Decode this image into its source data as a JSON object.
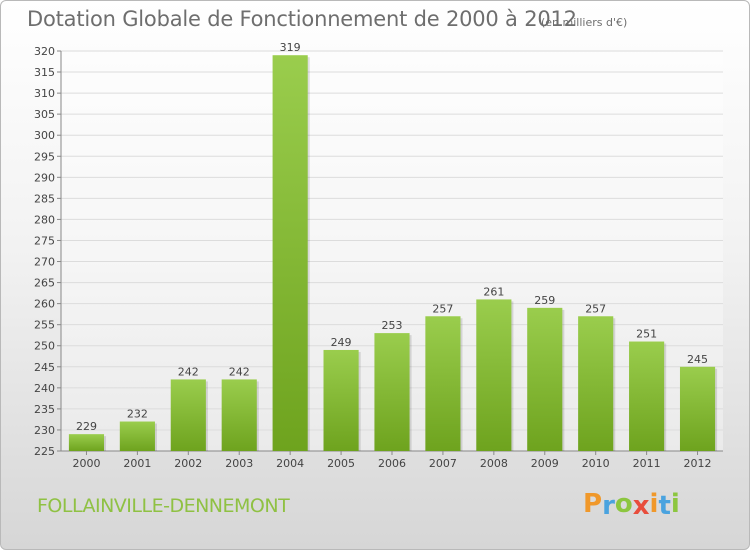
{
  "chart_data": {
    "type": "bar",
    "title": "Dotation Globale de Fonctionnement de 2000 à 2012",
    "unit_note": "(en milliers d'€)",
    "categories": [
      "2000",
      "2001",
      "2002",
      "2003",
      "2004",
      "2005",
      "2006",
      "2007",
      "2008",
      "2009",
      "2010",
      "2011",
      "2012"
    ],
    "values": [
      229,
      232,
      242,
      242,
      319,
      249,
      253,
      257,
      261,
      259,
      257,
      251,
      245
    ],
    "ylim": [
      225,
      320
    ],
    "ytick_step": 5,
    "grid": "horizontal",
    "bar_color_top": "#9acd4d",
    "bar_color_bottom": "#6ea31e"
  },
  "footer": {
    "commune": "FOLLAINVILLE-DENNEMONT"
  },
  "brand": {
    "name": "Proxiti",
    "letters": [
      "P",
      "r",
      "o",
      "x",
      "i",
      "t",
      "i"
    ],
    "colors": [
      "#f0982a",
      "#4aa3df",
      "#8cc63f",
      "#e84d3c",
      "#f0982a",
      "#4aa3df",
      "#8cc63f"
    ]
  }
}
